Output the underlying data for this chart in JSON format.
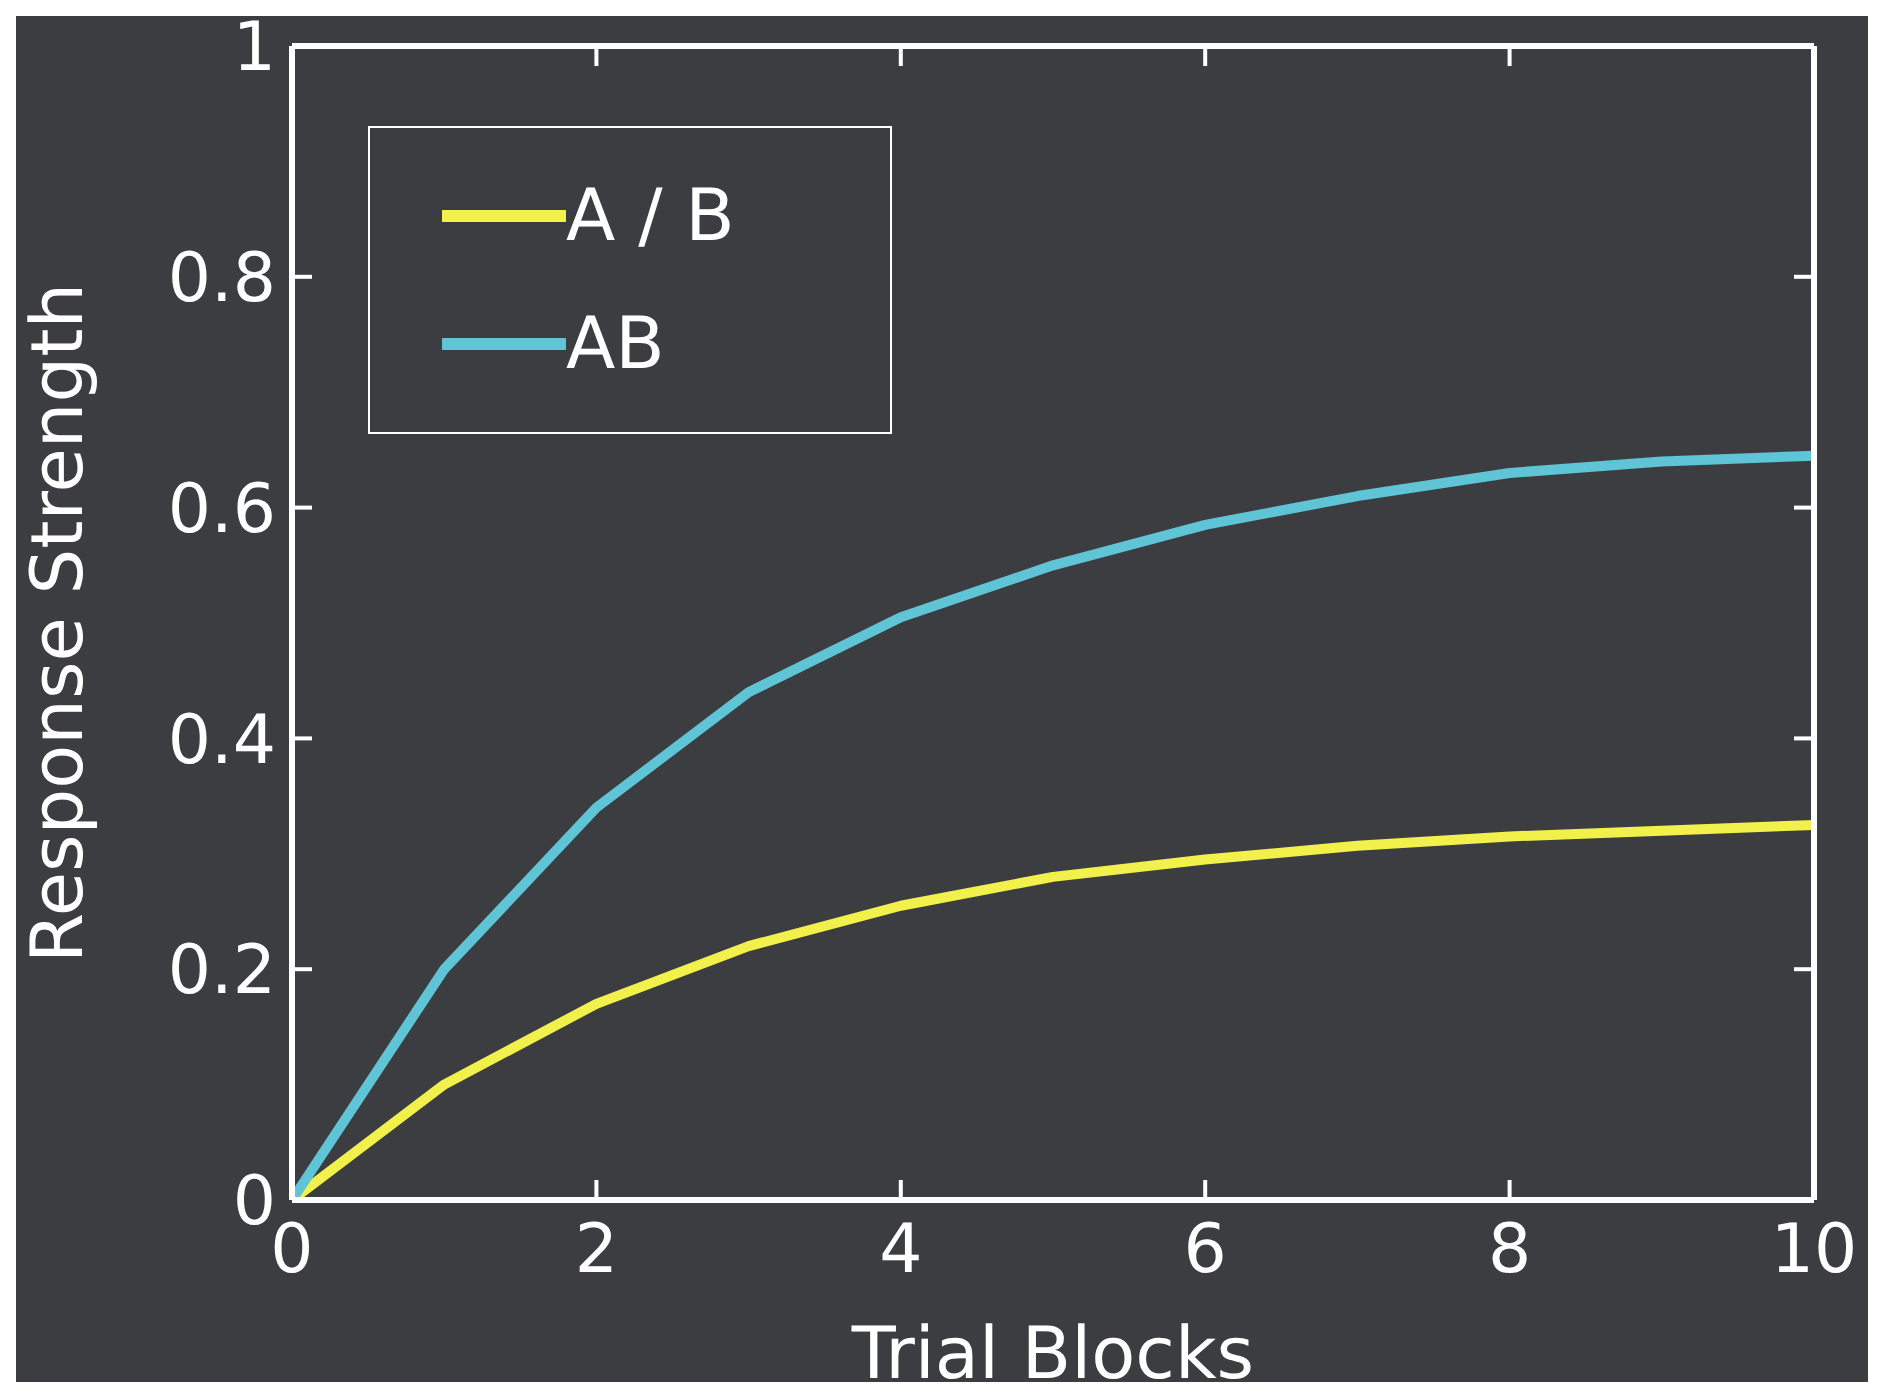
{
  "chart_data": {
    "type": "line",
    "xlabel": "Trial Blocks",
    "ylabel": "Response Strength",
    "x": [
      0,
      1,
      2,
      3,
      4,
      5,
      6,
      7,
      8,
      9,
      10
    ],
    "series": [
      {
        "name": "A / B",
        "color": "#f2f04a",
        "values": [
          0,
          0.1,
          0.17,
          0.22,
          0.255,
          0.28,
          0.295,
          0.307,
          0.315,
          0.32,
          0.325
        ]
      },
      {
        "name": "AB",
        "color": "#5ec4d6",
        "values": [
          0,
          0.2,
          0.34,
          0.44,
          0.505,
          0.55,
          0.585,
          0.61,
          0.63,
          0.64,
          0.645
        ]
      }
    ],
    "xlim": [
      0,
      10
    ],
    "ylim": [
      0,
      1
    ],
    "xticks": [
      0,
      2,
      4,
      6,
      8,
      10
    ],
    "yticks": [
      0,
      0.2,
      0.4,
      0.6,
      0.8,
      1
    ],
    "legend": "top left",
    "marker": "none"
  }
}
